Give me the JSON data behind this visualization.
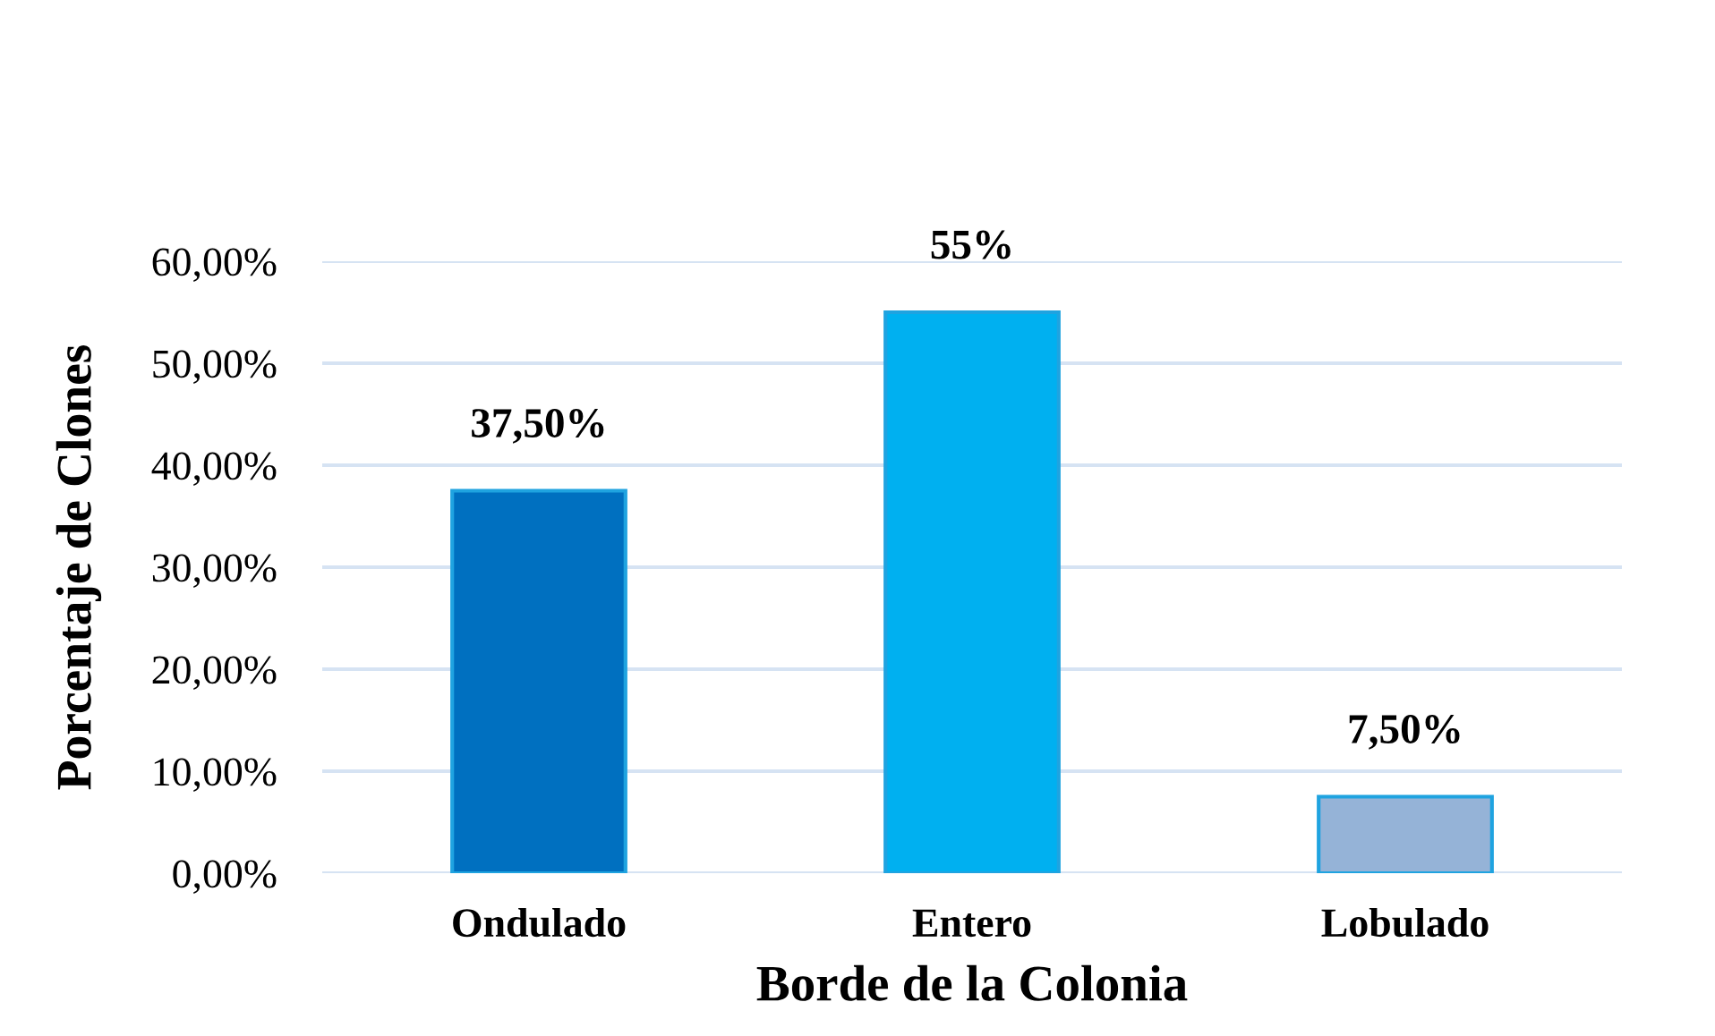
{
  "chart_data": {
    "type": "bar",
    "categories": [
      "Ondulado",
      "Entero",
      "Lobulado"
    ],
    "values": [
      37.5,
      55,
      7.5
    ],
    "colors": [
      "#0070c0",
      "#00b0f0",
      "#95b3d7"
    ],
    "value_labels": [
      "37,50%",
      "55%",
      "7,50%"
    ],
    "xlabel": "Borde de la Colonia",
    "ylabel": "Porcentaje de Clones",
    "ylim": [
      0,
      60
    ],
    "yticks": [
      {
        "value": 0,
        "label": "0,00%"
      },
      {
        "value": 10,
        "label": "10,00%"
      },
      {
        "value": 20,
        "label": "20,00%"
      },
      {
        "value": 30,
        "label": "30,00%"
      },
      {
        "value": 40,
        "label": "40,00%"
      },
      {
        "value": 50,
        "label": "50,00%"
      },
      {
        "value": 60,
        "label": "60,00%"
      }
    ],
    "grid": "y"
  }
}
